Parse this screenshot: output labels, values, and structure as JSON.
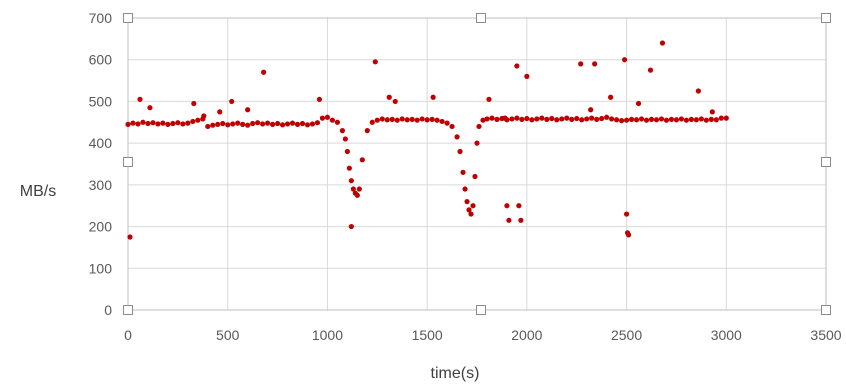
{
  "chart_data": {
    "type": "scatter",
    "title": "",
    "xlabel": "time(s)",
    "ylabel": "MB/s",
    "xlim": [
      0,
      3500
    ],
    "ylim": [
      0,
      700
    ],
    "x_ticks": [
      "0",
      "500",
      "1000",
      "1500",
      "2000",
      "2500",
      "3000",
      "3500"
    ],
    "y_ticks": [
      "0",
      "100",
      "200",
      "300",
      "400",
      "500",
      "600",
      "700"
    ],
    "grid": true,
    "legend": "none",
    "marker_color": "#c00000",
    "series": [
      {
        "values_x": [
          0,
          25,
          50,
          75,
          100,
          125,
          150,
          175,
          200,
          225,
          250,
          275,
          300,
          325,
          350,
          375,
          400,
          425,
          450,
          475,
          500,
          525,
          550,
          575,
          600,
          625,
          650,
          675,
          700,
          725,
          750,
          775,
          800,
          825,
          850,
          875,
          900,
          925,
          950,
          975,
          1000,
          1025,
          1050,
          1075,
          1090,
          1100,
          1110,
          1120,
          1130,
          1140,
          1150,
          1160,
          1175,
          1200,
          1225,
          1250,
          1275,
          1300,
          1325,
          1350,
          1375,
          1400,
          1425,
          1450,
          1475,
          1500,
          1525,
          1550,
          1575,
          1600,
          1625,
          1650,
          1665,
          1680,
          1690,
          1700,
          1710,
          1720,
          1730,
          1740,
          1750,
          1760,
          1780,
          1800,
          1825,
          1850,
          1875,
          1900,
          1925,
          1950,
          1975,
          2000,
          2025,
          2050,
          2075,
          2100,
          2125,
          2150,
          2175,
          2200,
          2225,
          2250,
          2275,
          2300,
          2325,
          2350,
          2375,
          2400,
          2425,
          2450,
          2475,
          2500,
          2525,
          2550,
          2575,
          2600,
          2625,
          2650,
          2675,
          2700,
          2725,
          2750,
          2775,
          2800,
          2825,
          2850,
          2875,
          2900,
          2925,
          2950,
          2975,
          3000,
          10,
          60,
          110,
          330,
          380,
          460,
          520,
          600,
          680,
          960,
          1120,
          1240,
          1310,
          1340,
          1530,
          1810,
          1890,
          1900,
          1910,
          1950,
          1960,
          1970,
          2000,
          2270,
          2320,
          2340,
          2420,
          2490,
          2500,
          2505,
          2510,
          2560,
          2620,
          2680,
          2860,
          2930
        ],
        "values_y": [
          445,
          448,
          446,
          450,
          447,
          449,
          446,
          448,
          445,
          447,
          449,
          446,
          448,
          452,
          455,
          458,
          440,
          443,
          445,
          447,
          444,
          446,
          448,
          445,
          443,
          447,
          449,
          446,
          448,
          445,
          447,
          444,
          446,
          448,
          445,
          447,
          444,
          446,
          449,
          460,
          462,
          455,
          450,
          430,
          410,
          380,
          340,
          310,
          290,
          280,
          275,
          290,
          360,
          430,
          450,
          455,
          458,
          456,
          457,
          455,
          458,
          456,
          457,
          455,
          458,
          456,
          457,
          455,
          452,
          448,
          440,
          415,
          380,
          330,
          290,
          260,
          240,
          230,
          250,
          320,
          400,
          440,
          455,
          458,
          460,
          457,
          459,
          456,
          458,
          460,
          457,
          459,
          456,
          458,
          460,
          457,
          459,
          456,
          458,
          460,
          457,
          459,
          456,
          458,
          460,
          457,
          459,
          462,
          458,
          456,
          454,
          455,
          457,
          456,
          458,
          455,
          457,
          456,
          458,
          455,
          457,
          456,
          458,
          455,
          457,
          456,
          458,
          455,
          457,
          456,
          460,
          460,
          175,
          505,
          485,
          495,
          465,
          475,
          500,
          480,
          570,
          505,
          200,
          595,
          510,
          500,
          510,
          505,
          460,
          250,
          215,
          585,
          250,
          215,
          560,
          590,
          480,
          590,
          510,
          600,
          230,
          185,
          180,
          495,
          575,
          640,
          525,
          475
        ]
      }
    ]
  }
}
